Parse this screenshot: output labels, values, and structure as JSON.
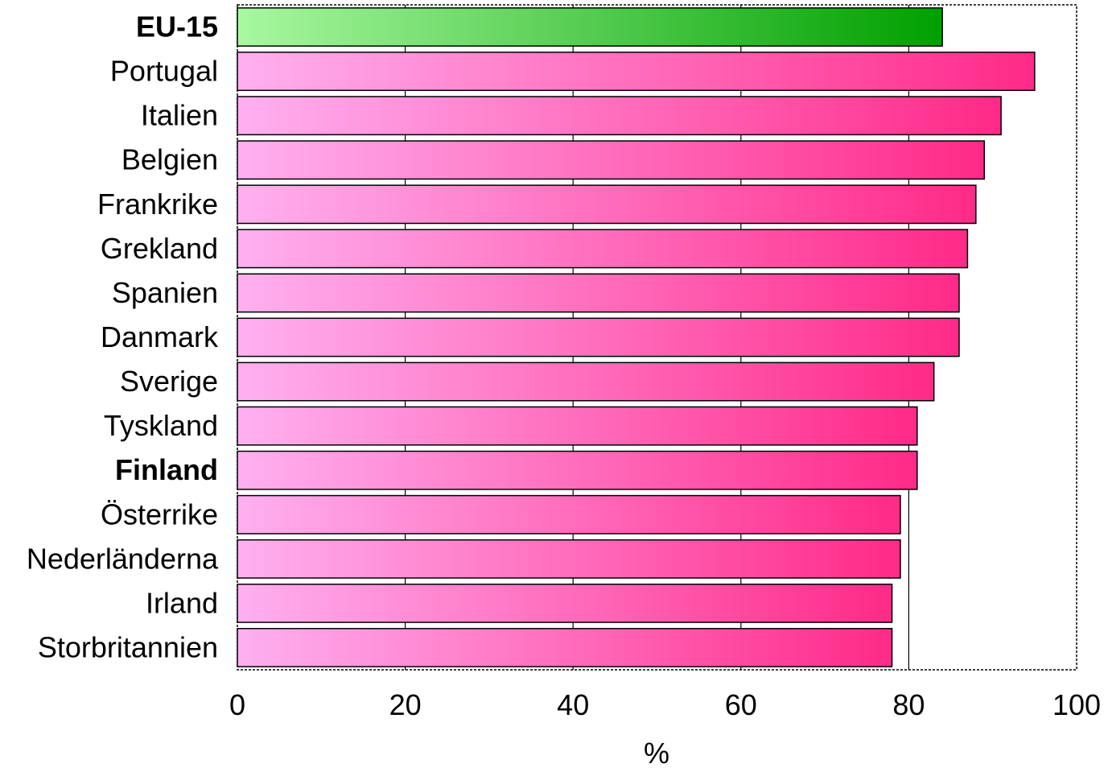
{
  "chart_data": {
    "type": "bar",
    "orientation": "horizontal",
    "categories": [
      "EU-15",
      "Portugal",
      "Italien",
      "Belgien",
      "Frankrike",
      "Grekland",
      "Spanien",
      "Danmark",
      "Sverige",
      "Tyskland",
      "Finland",
      "Österrike",
      "Nederländerna",
      "Irland",
      "Storbritannien"
    ],
    "bold_categories": [
      "EU-15",
      "Finland"
    ],
    "values": [
      84,
      95,
      91,
      89,
      88,
      87,
      86,
      86,
      83,
      81,
      81,
      79,
      79,
      78,
      78
    ],
    "xlabel": "%",
    "ylabel": "",
    "xlim": [
      0,
      100
    ],
    "xticks": [
      0,
      20,
      40,
      60,
      80,
      100
    ],
    "xtick_labels": [
      "0",
      "20",
      "40",
      "60",
      "80",
      "100"
    ],
    "grid": "vertical",
    "legend": "none",
    "colors": {
      "highlight_start": "#a8f8a0",
      "highlight_end": "#00a000",
      "bar_start": "#ffb0f0",
      "bar_end": "#ff2a88",
      "frame": "#000000"
    }
  }
}
